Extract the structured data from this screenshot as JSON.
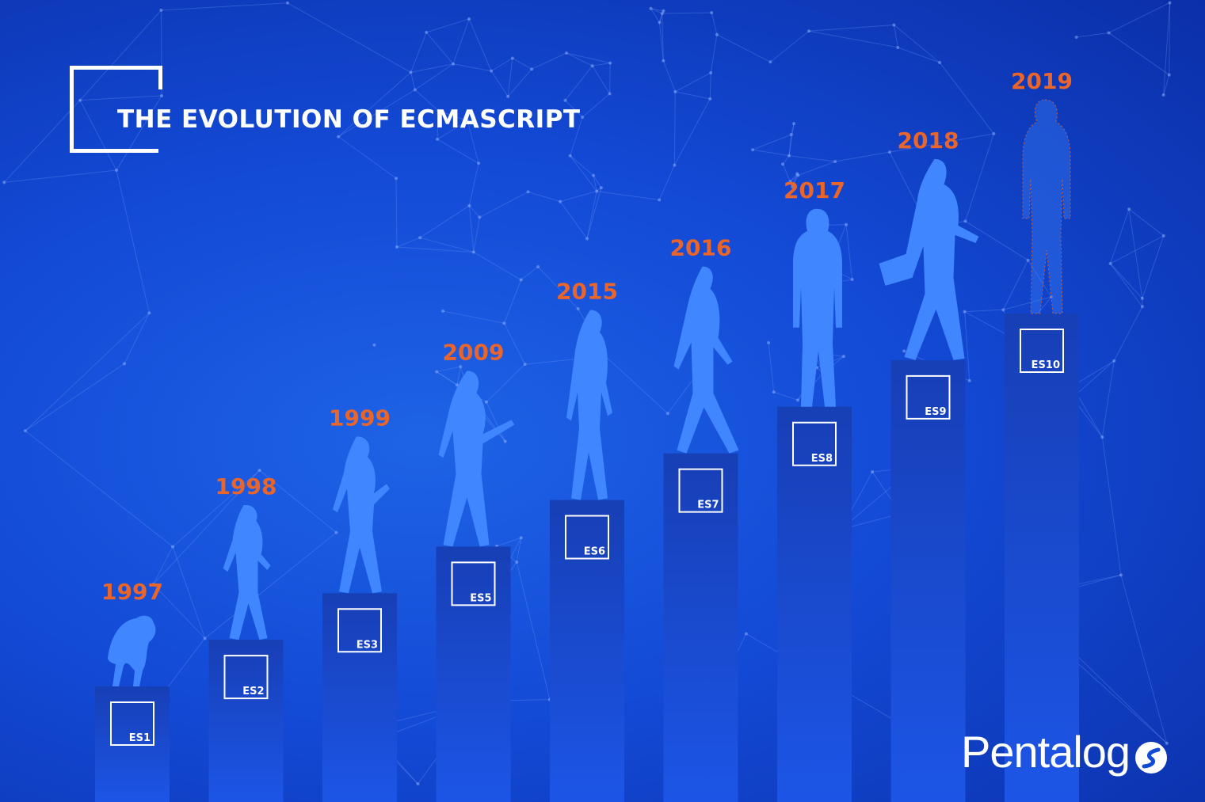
{
  "header": {
    "title": "THE EVOLUTION OF ECMASCRIPT"
  },
  "brand": {
    "name": "Pentalog"
  },
  "colors": {
    "year_label": "#e9652a",
    "bar_top": "#173fb6",
    "bar_bottom": "#1a4fe0",
    "figure": "#3f86ff",
    "badge_border": "#ffffff"
  },
  "chart_data": {
    "type": "bar",
    "title": "THE EVOLUTION OF ECMASCRIPT",
    "categories": [
      "ES1",
      "ES2",
      "ES3",
      "ES5",
      "ES6",
      "ES7",
      "ES8",
      "ES9",
      "ES10"
    ],
    "years": [
      "1997",
      "1998",
      "1999",
      "2009",
      "2015",
      "2016",
      "2017",
      "2018",
      "2019"
    ],
    "values": [
      1,
      2,
      3,
      4,
      5,
      6,
      7,
      8,
      9
    ],
    "figure_icons": [
      "ape-figure-icon",
      "early-hominid-icon",
      "hominid-icon",
      "caveman-spear-icon",
      "early-human-icon",
      "human-walking-icon",
      "man-standing-icon",
      "businessman-briefcase-icon",
      "digital-human-icon"
    ],
    "grid": false,
    "legend": "none"
  }
}
